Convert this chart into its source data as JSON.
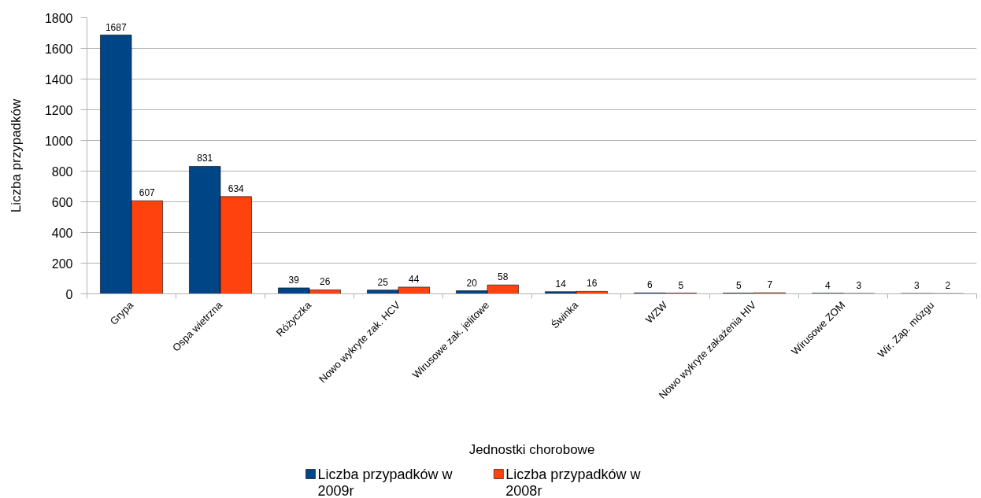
{
  "chart_data": {
    "type": "bar",
    "xlabel": "Jednostki chorobowe",
    "ylabel": "Liczba przypadków",
    "categories": [
      "Grypa",
      "Ospa wietrzna",
      "Różyczka",
      "Nowo wykryte zak. HCV",
      "Wirusowe zak. jelitowe",
      "Świnka",
      "WZW",
      "Nowo wykryte zakażenia HIV",
      "Wirusowe ZOM",
      "Wir. Zap. mózgu"
    ],
    "series": [
      {
        "name": "Liczba przypadków w 2009r",
        "color": "#004586",
        "values": [
          1687,
          831,
          39,
          25,
          20,
          14,
          6,
          5,
          4,
          3
        ]
      },
      {
        "name": "Liczba przypadków w 2008r",
        "color": "#ff420e",
        "values": [
          607,
          634,
          26,
          44,
          58,
          16,
          5,
          7,
          3,
          2
        ]
      }
    ],
    "ylim": [
      0,
      1800
    ],
    "yticks": [
      0,
      200,
      400,
      600,
      800,
      1000,
      1200,
      1400,
      1600,
      1800
    ],
    "grid": "y",
    "legend": "bottom",
    "data_labels": true
  }
}
